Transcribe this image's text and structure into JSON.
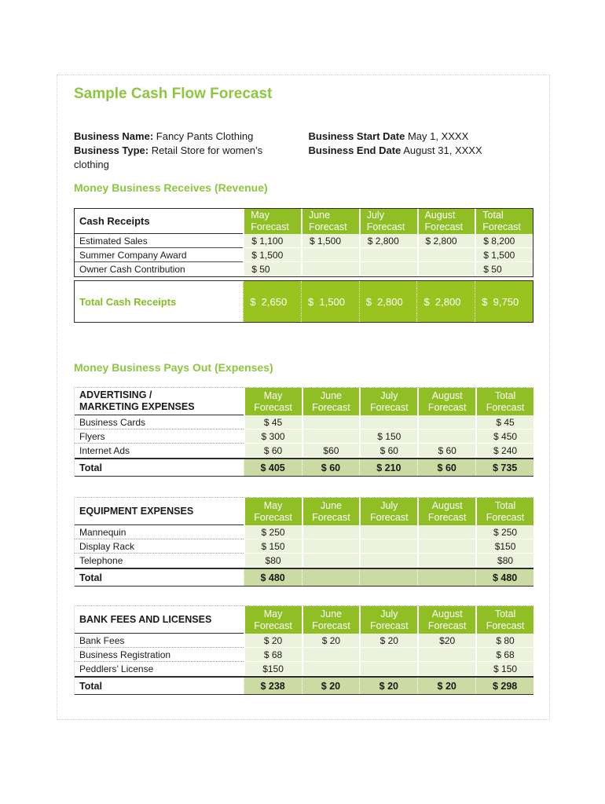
{
  "page": {
    "title": "Sample Cash Flow Forecast"
  },
  "colors": {
    "accent_green": "#8DC63F",
    "table_header_green": "#8FBE25",
    "total_row_green": "#99C41F",
    "pale_cell_green": "#EDF2DC",
    "total_sage_green": "#CCDAA4"
  },
  "business": {
    "name_label": "Business Name:",
    "name_value": "Fancy Pants Clothing",
    "type_label": "Business Type:",
    "type_value": "Retail Store for women’s clothing",
    "start_label": "Business Start Date",
    "start_value": "May 1, XXXX",
    "end_label": "Business End Date",
    "end_value": "August 31, XXXX"
  },
  "headings": {
    "revenue": "Money Business Receives (Revenue)",
    "expenses": "Money Business Pays Out (Expenses)"
  },
  "columns": [
    "May\nForecast",
    "June\nForecast",
    "July\nForecast",
    "August\nForecast",
    "Total\nForecast"
  ],
  "receipts": {
    "label": "Cash Receipts",
    "rows": [
      {
        "label": "Estimated Sales",
        "c": [
          "$ 1,100",
          "$ 1,500",
          "$ 2,800",
          "$ 2,800",
          "$ 8,200"
        ]
      },
      {
        "label": "Summer Company Award",
        "c": [
          "$ 1,500",
          "",
          "",
          "",
          "$ 1,500"
        ]
      },
      {
        "label": "Owner Cash Contribution",
        "c": [
          "$ 50",
          "",
          "",
          "",
          "$ 50"
        ]
      }
    ],
    "total": {
      "label": "Total Cash Receipts",
      "c": [
        "$  2,650",
        "$  1,500",
        "$  2,800",
        "$  2,800",
        "$  9,750"
      ]
    }
  },
  "advertising": {
    "label": "ADVERTISING /\nMARKETING EXPENSES",
    "rows": [
      {
        "label": "Business Cards",
        "c": [
          "$ 45",
          "",
          "",
          "",
          "$ 45"
        ]
      },
      {
        "label": "Flyers",
        "c": [
          "$ 300",
          "",
          "$ 150",
          "",
          "$ 450"
        ]
      },
      {
        "label": "Internet Ads",
        "c": [
          "$ 60",
          "$60",
          "$ 60",
          "$ 60",
          "$ 240"
        ]
      }
    ],
    "total": {
      "label": "Total",
      "c": [
        "$ 405",
        "$ 60",
        "$ 210",
        "$ 60",
        "$ 735"
      ]
    }
  },
  "equipment": {
    "label": "EQUIPMENT EXPENSES",
    "rows": [
      {
        "label": "Mannequin",
        "c": [
          "$ 250",
          "",
          "",
          "",
          "$ 250"
        ]
      },
      {
        "label": "Display Rack",
        "c": [
          "$ 150",
          "",
          "",
          "",
          "$150"
        ]
      },
      {
        "label": "Telephone",
        "c": [
          "$80",
          "",
          "",
          "",
          "$80"
        ]
      }
    ],
    "total": {
      "label": "Total",
      "c": [
        "$ 480",
        "",
        "",
        "",
        "$ 480"
      ]
    }
  },
  "bank": {
    "label": "BANK FEES AND LICENSES",
    "rows": [
      {
        "label": "Bank Fees",
        "c": [
          "$ 20",
          "$ 20",
          "$ 20",
          "$20",
          "$ 80"
        ]
      },
      {
        "label": "Business Registration",
        "c": [
          "$ 68",
          "",
          "",
          "",
          "$ 68"
        ]
      },
      {
        "label": "Peddlers’ License",
        "c": [
          "$150",
          "",
          "",
          "",
          "$ 150"
        ]
      }
    ],
    "total": {
      "label": "Total",
      "c": [
        "$ 238",
        "$ 20",
        "$ 20",
        "$ 20",
        "$ 298"
      ]
    }
  }
}
